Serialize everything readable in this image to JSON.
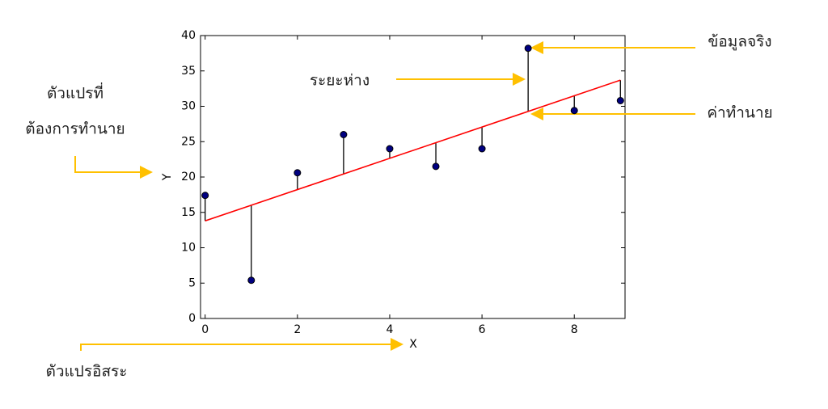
{
  "chart_data": {
    "type": "scatter",
    "x_label": "X",
    "y_label": "Y",
    "x": [
      0,
      1,
      2,
      3,
      4,
      5,
      6,
      7,
      8,
      9
    ],
    "values": [
      17.4,
      5.4,
      20.6,
      26,
      24,
      21.5,
      24,
      38.2,
      29.4,
      30.8
    ],
    "color": "#000080",
    "fit_line": {
      "x": [
        0,
        9
      ],
      "y": [
        13.8,
        33.7
      ],
      "color": "#ff0000"
    },
    "xlim": [
      -0.1,
      9.1
    ],
    "ylim": [
      0,
      40
    ],
    "xticks": [
      0,
      2,
      4,
      6,
      8
    ],
    "yticks": [
      0,
      5,
      10,
      15,
      20,
      25,
      30,
      35,
      40
    ],
    "annotations": {
      "actual": "ข้อมูลจริง",
      "predicted": "ค่าทำนาย",
      "distance": "ระยะห่าง",
      "dependent": [
        "ตัวแปรที่",
        "ต้องการทำนาย"
      ],
      "independent": "ตัวแปรอิสระ"
    }
  }
}
